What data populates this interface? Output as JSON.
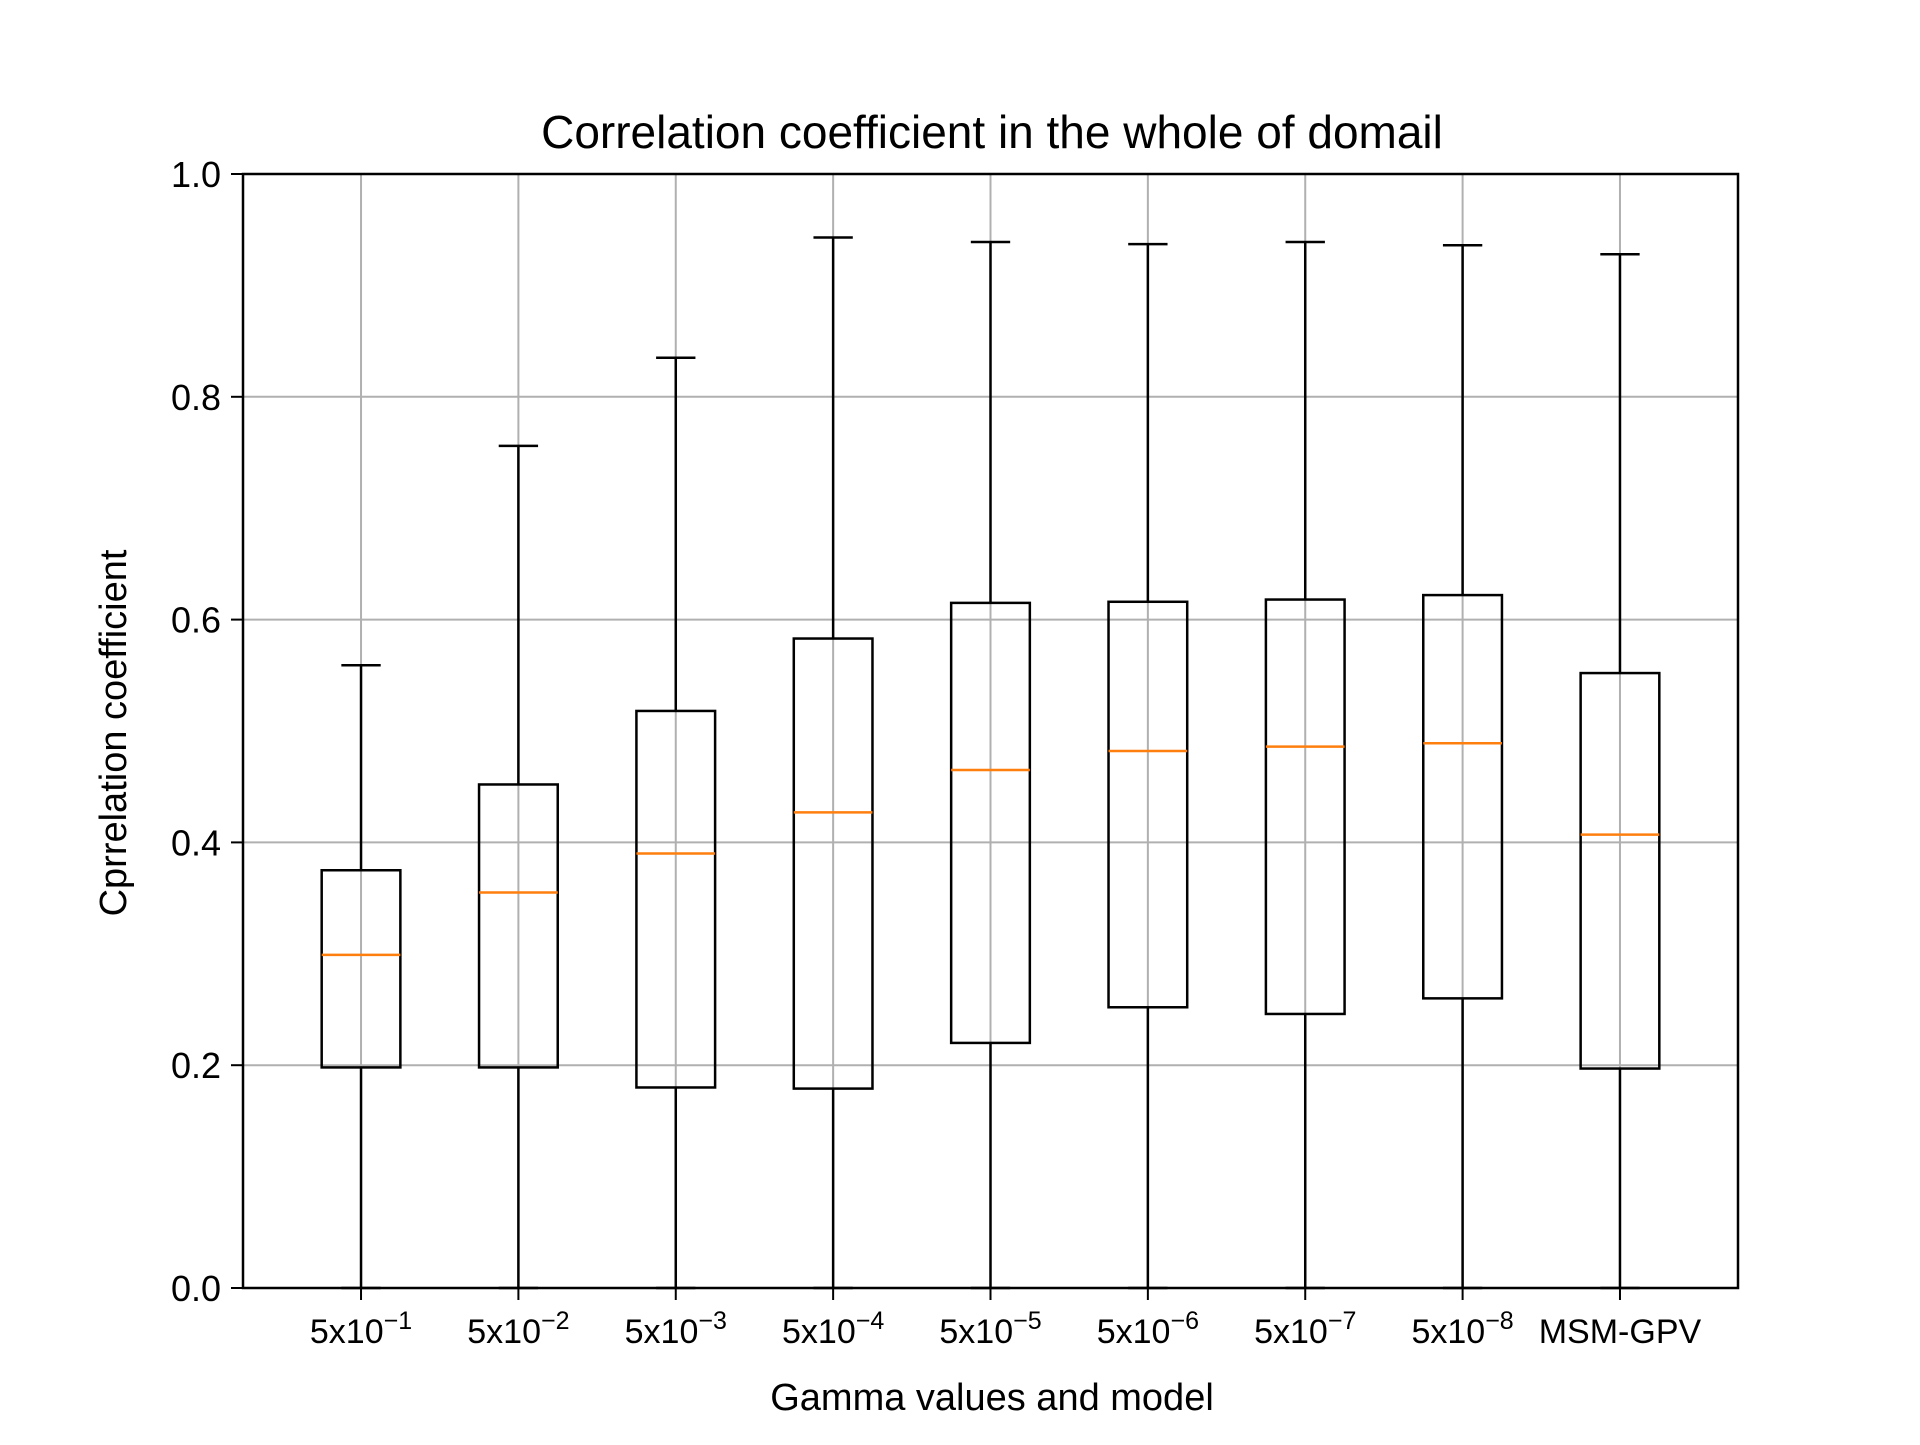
{
  "chart_data": {
    "type": "box",
    "title": "Correlation coefficient in the whole of domail",
    "xlabel": "Gamma values and model",
    "ylabel": "Cprrelation coefficient",
    "ylim": [
      0.0,
      1.0
    ],
    "yticks": [
      "0.0",
      "0.2",
      "0.4",
      "0.6",
      "0.8",
      "1.0"
    ],
    "grid": true,
    "categories": [
      {
        "base": "5x10",
        "exp": "−1"
      },
      {
        "base": "5x10",
        "exp": "−2"
      },
      {
        "base": "5x10",
        "exp": "−3"
      },
      {
        "base": "5x10",
        "exp": "−4"
      },
      {
        "base": "5x10",
        "exp": "−5"
      },
      {
        "base": "5x10",
        "exp": "−6"
      },
      {
        "base": "5x10",
        "exp": "−7"
      },
      {
        "base": "5x10",
        "exp": "−8"
      },
      {
        "base": "MSM-GPV",
        "exp": ""
      }
    ],
    "boxes": [
      {
        "whisker_low": 0.0,
        "q1": 0.198,
        "median": 0.299,
        "q3": 0.375,
        "whisker_high": 0.559
      },
      {
        "whisker_low": 0.0,
        "q1": 0.198,
        "median": 0.355,
        "q3": 0.452,
        "whisker_high": 0.756
      },
      {
        "whisker_low": 0.0,
        "q1": 0.18,
        "median": 0.39,
        "q3": 0.518,
        "whisker_high": 0.835
      },
      {
        "whisker_low": 0.0,
        "q1": 0.179,
        "median": 0.427,
        "q3": 0.583,
        "whisker_high": 0.943
      },
      {
        "whisker_low": 0.0,
        "q1": 0.22,
        "median": 0.465,
        "q3": 0.615,
        "whisker_high": 0.939
      },
      {
        "whisker_low": 0.0,
        "q1": 0.252,
        "median": 0.482,
        "q3": 0.616,
        "whisker_high": 0.937
      },
      {
        "whisker_low": 0.0,
        "q1": 0.246,
        "median": 0.486,
        "q3": 0.618,
        "whisker_high": 0.939
      },
      {
        "whisker_low": 0.0,
        "q1": 0.26,
        "median": 0.489,
        "q3": 0.622,
        "whisker_high": 0.936
      },
      {
        "whisker_low": 0.0,
        "q1": 0.197,
        "median": 0.407,
        "q3": 0.552,
        "whisker_high": 0.928
      }
    ],
    "colors": {
      "box": "#000000",
      "median": "#ff7f0e",
      "grid": "#b0b0b0"
    }
  }
}
